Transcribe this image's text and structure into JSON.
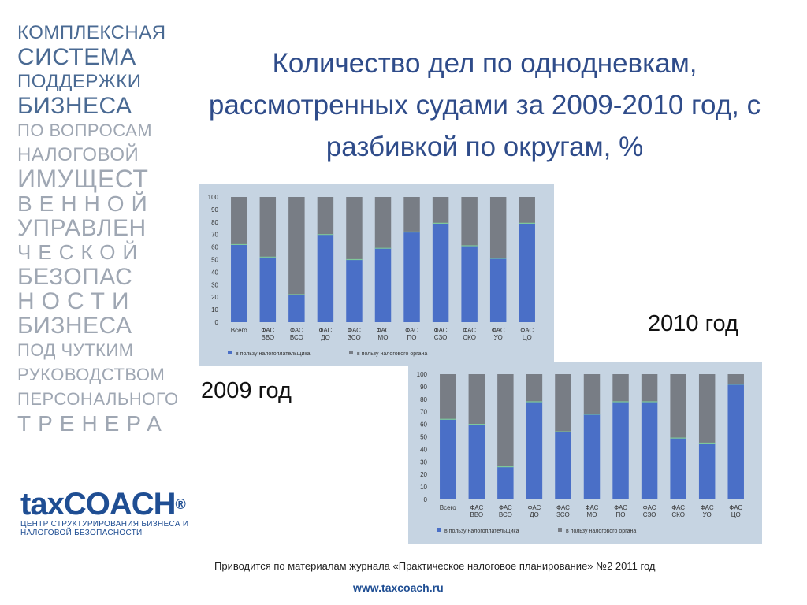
{
  "sidebar": {
    "lines": [
      "КОМПЛЕКСНАЯ",
      "СИСТЕМА",
      "ПОДДЕРЖКИ",
      "БИЗНЕСА",
      "ПО ВОПРОСАМ",
      "НАЛОГОВОЙ",
      "ИМУЩЕСТ",
      "ВЕННОЙ",
      "УПРАВЛЕН",
      "ЧЕСКОЙ",
      "БЕЗОПАС",
      "НОСТИ",
      "БИЗНЕСА",
      "ПОД ЧУТКИМ",
      "РУКОВОДСТВОМ",
      "ПЕРСОНАЛЬНОГО",
      "ТРЕНЕРА"
    ]
  },
  "logo": {
    "name": "taxCOACH",
    "reg": "®",
    "tagline_1": "ЦЕНТР СТРУКТУРИРОВАНИЯ БИЗНЕСА И",
    "tagline_2": "НАЛОГОВОЙ БЕЗОПАСНОСТИ"
  },
  "title": "Количество дел по однодневкам, рассмотренных судами за 2009-2010 год, с разбивкой по округам, %",
  "labels": {
    "year_2010": "2010 год",
    "year_2009": "2009 год"
  },
  "source": "Приводится по материалам журнала «Практическое налоговое планирование» №2 2011 год",
  "website": "www.taxcoach.ru",
  "colors": {
    "taxpayer": "#4a6fc7",
    "authority": "#787d85",
    "panel": "#c6d4e2",
    "accent": "#1f4e93"
  },
  "chart_data": [
    {
      "type": "bar",
      "stacked": true,
      "categories": [
        "Всего",
        "ФАС ВВО",
        "ФАС ВСО",
        "ФАС ДО",
        "ФАС ЗСО",
        "ФАС МО",
        "ФАС ПО",
        "ФАС СЗО",
        "ФАС СКО",
        "ФАС УО",
        "ФАС ЦО"
      ],
      "series": [
        {
          "name": "в пользу налогоплательщика",
          "values": [
            62,
            52,
            22,
            70,
            50,
            59,
            72,
            79,
            61,
            51,
            79
          ]
        },
        {
          "name": "в пользу налогового органа",
          "values": [
            38,
            48,
            78,
            30,
            50,
            41,
            28,
            21,
            39,
            49,
            21
          ]
        }
      ],
      "ylim": [
        0,
        100
      ],
      "yticks": [
        0,
        10,
        20,
        30,
        40,
        50,
        60,
        70,
        80,
        90,
        100
      ],
      "legend": "bottom"
    },
    {
      "type": "bar",
      "stacked": true,
      "categories": [
        "Всего",
        "ФАС ВВО",
        "ФАС ВСО",
        "ФАС ДО",
        "ФАС ЗСО",
        "ФАС МО",
        "ФАС ПО",
        "ФАС СЗО",
        "ФАС СКО",
        "ФАС УО",
        "ФАС ЦО"
      ],
      "series": [
        {
          "name": "в пользу налогоплательщика",
          "values": [
            64,
            60,
            26,
            78,
            54,
            68,
            78,
            78,
            49,
            45,
            92
          ]
        },
        {
          "name": "в пользу налогового органа",
          "values": [
            36,
            40,
            74,
            22,
            46,
            32,
            22,
            22,
            51,
            55,
            8
          ]
        }
      ],
      "ylim": [
        0,
        100
      ],
      "yticks": [
        0,
        10,
        20,
        30,
        40,
        50,
        60,
        70,
        80,
        90,
        100
      ],
      "legend": "bottom"
    }
  ]
}
